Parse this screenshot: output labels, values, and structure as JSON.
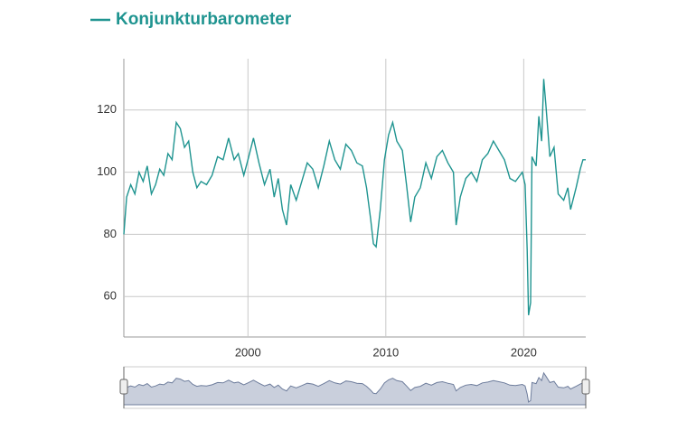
{
  "chart_data": {
    "type": "line",
    "x": [
      1991.0,
      1991.2,
      1991.5,
      1991.8,
      1992.1,
      1992.4,
      1992.7,
      1993.0,
      1993.3,
      1993.6,
      1993.9,
      1994.2,
      1994.5,
      1994.8,
      1995.1,
      1995.4,
      1995.7,
      1996.0,
      1996.3,
      1996.6,
      1997.0,
      1997.4,
      1997.8,
      1998.2,
      1998.6,
      1999.0,
      1999.3,
      1999.7,
      2000.0,
      2000.4,
      2000.8,
      2001.2,
      2001.6,
      2001.9,
      2002.2,
      2002.5,
      2002.8,
      2003.1,
      2003.5,
      2003.9,
      2004.3,
      2004.7,
      2005.1,
      2005.5,
      2005.9,
      2006.3,
      2006.7,
      2007.1,
      2007.5,
      2007.9,
      2008.3,
      2008.6,
      2008.9,
      2009.1,
      2009.3,
      2009.6,
      2009.9,
      2010.2,
      2010.5,
      2010.8,
      2011.2,
      2011.5,
      2011.8,
      2012.1,
      2012.5,
      2012.9,
      2013.3,
      2013.7,
      2014.1,
      2014.5,
      2014.9,
      2015.1,
      2015.4,
      2015.8,
      2016.2,
      2016.6,
      2017.0,
      2017.4,
      2017.8,
      2018.2,
      2018.6,
      2019.0,
      2019.4,
      2019.9,
      2020.1,
      2020.25,
      2020.35,
      2020.5,
      2020.6,
      2020.9,
      2021.1,
      2021.3,
      2021.45,
      2021.6,
      2021.9,
      2022.2,
      2022.5,
      2022.9,
      2023.2,
      2023.4,
      2023.8,
      2024.1,
      2024.3,
      2024.5
    ],
    "series": [
      {
        "name": "Konjunkturbarometer",
        "color": "#1f9490",
        "values": [
          80,
          92,
          96,
          93,
          100,
          97,
          102,
          93,
          96,
          101,
          99,
          106,
          104,
          116,
          114,
          108,
          110,
          100,
          95,
          97,
          96,
          99,
          105,
          104,
          111,
          104,
          106,
          99,
          104,
          111,
          103,
          96,
          101,
          92,
          98,
          88,
          83,
          96,
          91,
          97,
          103,
          101,
          95,
          102,
          110,
          104,
          101,
          109,
          107,
          103,
          102,
          95,
          85,
          77,
          76,
          88,
          104,
          112,
          116,
          110,
          107,
          96,
          84,
          92,
          95,
          103,
          98,
          105,
          107,
          103,
          100,
          83,
          92,
          98,
          100,
          97,
          104,
          106,
          110,
          107,
          104,
          98,
          97,
          100,
          96,
          75,
          54,
          58,
          105,
          102,
          118,
          110,
          130,
          122,
          105,
          108,
          93,
          91,
          95,
          88,
          95,
          101,
          104,
          104
        ]
      }
    ],
    "xlim": [
      1991,
      2024.5
    ],
    "ylim": [
      47,
      136.5
    ],
    "xticks": [
      2000,
      2010,
      2020
    ],
    "yticks": [
      60,
      80,
      100,
      120
    ],
    "grid": true
  }
}
